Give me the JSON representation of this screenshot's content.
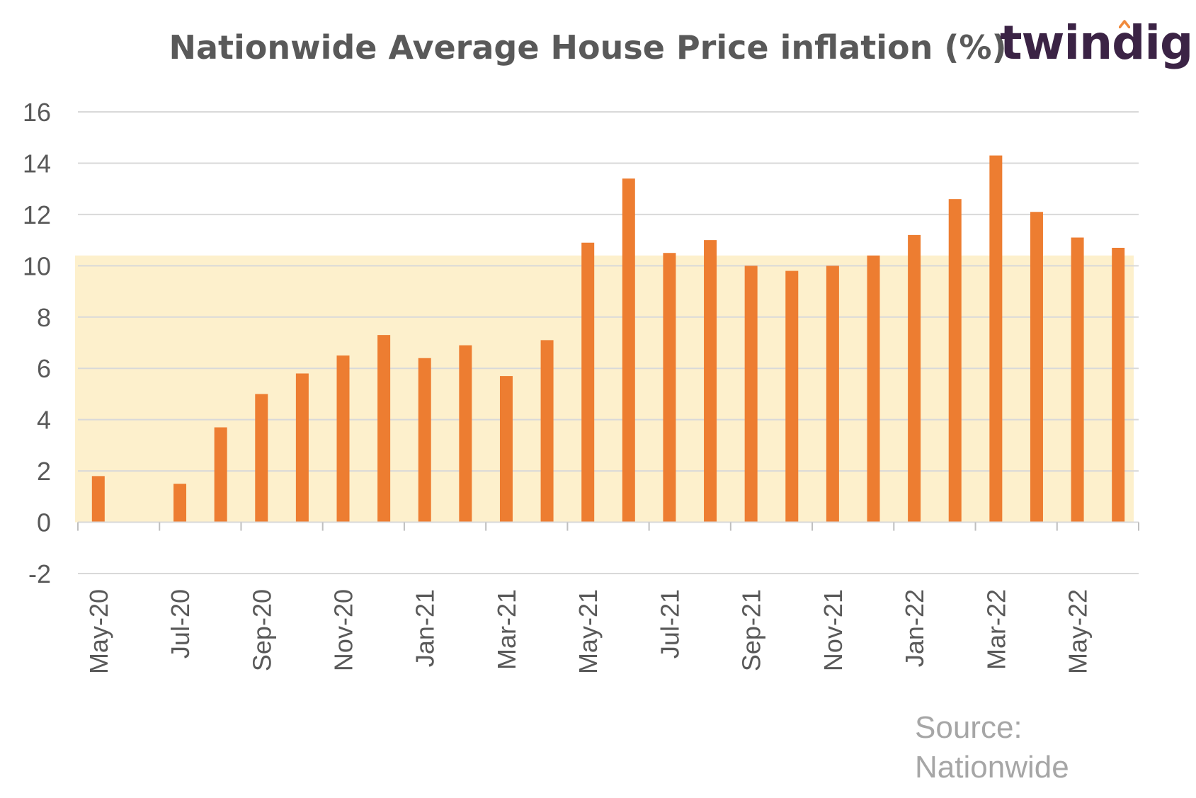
{
  "logo": {
    "text": "twindig"
  },
  "source": {
    "line1": "Source:",
    "line2": "Nationwide"
  },
  "colors": {
    "bar": "#ed7d31",
    "band": "#fdf0cc",
    "grid": "#d9d9d9",
    "text": "#595959",
    "logo": "#3b2345",
    "logo_accent": "#f08a3c"
  },
  "chart_data": {
    "type": "bar",
    "title": "Nationwide Average House Price inflation (%)",
    "xlabel": "",
    "ylabel": "",
    "ylim": [
      -2,
      16
    ],
    "yticks": [
      -2,
      0,
      2,
      4,
      6,
      8,
      10,
      12,
      14,
      16
    ],
    "grid": true,
    "highlight_band": {
      "from": 0,
      "to": 10.4
    },
    "categories": [
      "May-20",
      "Jun-20",
      "Jul-20",
      "Aug-20",
      "Sep-20",
      "Oct-20",
      "Nov-20",
      "Dec-20",
      "Jan-21",
      "Feb-21",
      "Mar-21",
      "Apr-21",
      "May-21",
      "Jun-21",
      "Jul-21",
      "Aug-21",
      "Sep-21",
      "Oct-21",
      "Nov-21",
      "Dec-21",
      "Jan-22",
      "Feb-22",
      "Mar-22",
      "Apr-22",
      "May-22",
      "Jun-22"
    ],
    "tick_labels": [
      "May-20",
      "",
      "Jul-20",
      "",
      "Sep-20",
      "",
      "Nov-20",
      "",
      "Jan-21",
      "",
      "Mar-21",
      "",
      "May-21",
      "",
      "Jul-21",
      "",
      "Sep-21",
      "",
      "Nov-21",
      "",
      "Jan-22",
      "",
      "Mar-22",
      "",
      "May-22",
      ""
    ],
    "values": [
      1.8,
      null,
      1.5,
      3.7,
      5.0,
      5.8,
      6.5,
      7.3,
      6.4,
      6.9,
      5.7,
      7.1,
      10.9,
      13.4,
      10.5,
      11.0,
      10.0,
      9.8,
      10.0,
      10.4,
      11.2,
      12.6,
      14.3,
      12.1,
      11.1,
      10.7
    ]
  }
}
